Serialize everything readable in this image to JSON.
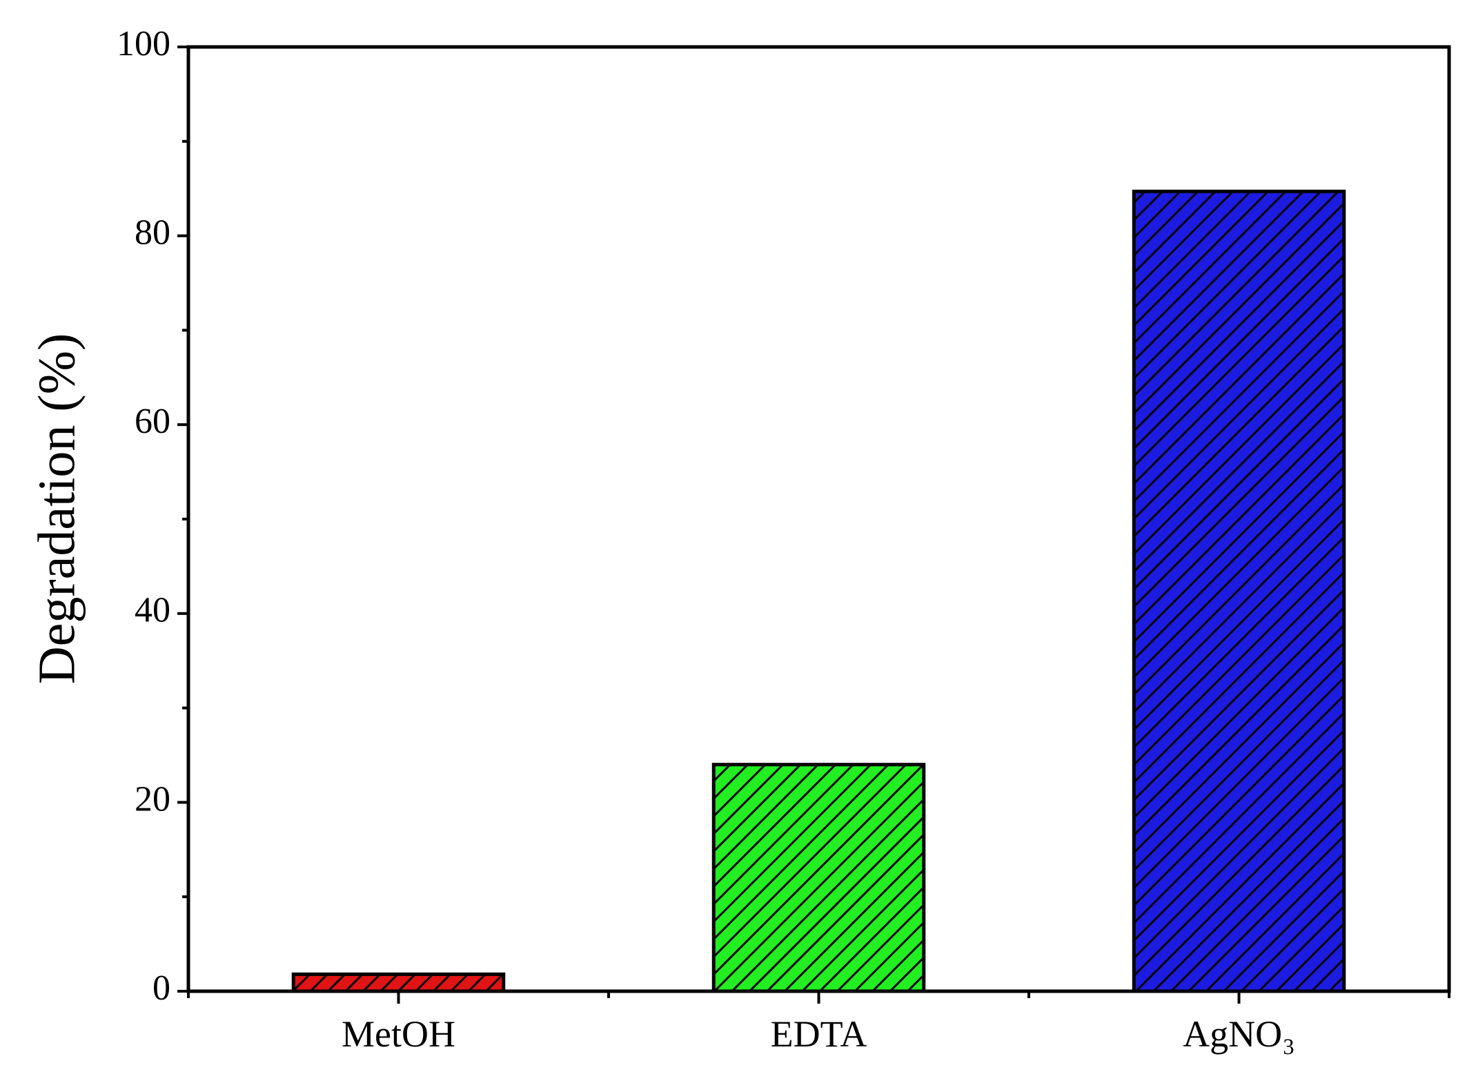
{
  "chart_data": {
    "type": "bar",
    "y_label": "Degradation (%)",
    "categories": [
      "MetOH",
      "EDTA",
      "AgNO₃"
    ],
    "values": [
      1.8,
      24,
      84.7
    ],
    "colors": [
      "#e01414",
      "#22ee22",
      "#1c1ce0"
    ],
    "ylim": [
      0,
      100
    ],
    "yticks": [
      0,
      20,
      40,
      60,
      80,
      100
    ],
    "yminorticks": [
      10,
      30,
      50,
      70,
      90
    ],
    "hatch": true
  }
}
